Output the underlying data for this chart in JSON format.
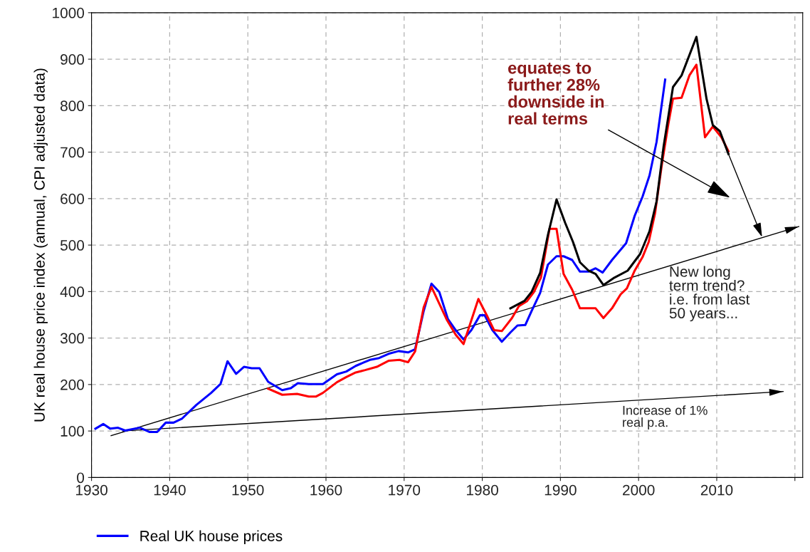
{
  "chart_data": {
    "type": "line",
    "ylabel": "UK real house price index (annual, CPI adjusted data)",
    "xlim": [
      1930,
      2021
    ],
    "ylim": [
      0,
      1000
    ],
    "xticks": [
      1930,
      1940,
      1950,
      1960,
      1970,
      1980,
      1990,
      2000,
      2010,
      {
        "value": 2020,
        "label": null
      }
    ],
    "yticks": [
      0,
      100,
      200,
      300,
      400,
      500,
      600,
      700,
      800,
      900,
      1000
    ],
    "grid": true,
    "legend": "bottom",
    "marker": "none",
    "line_style": "solid",
    "series": [
      {
        "name": "Real UK house prices",
        "color": "#0000ff",
        "x": [
          1930.5,
          1931.5,
          1932.4,
          1933.4,
          1934.3,
          1936.2,
          1937.4,
          1938.4,
          1939.5,
          1940.5,
          1941.6,
          1943.4,
          1945.3,
          1946.5,
          1947.4,
          1948.5,
          1949.5,
          1950.5,
          1951.5,
          1952.6,
          1954.4,
          1955.5,
          1956.4,
          1957.8,
          1959.6,
          1961.4,
          1962.6,
          1963.8,
          1965.6,
          1966.8,
          1968.0,
          1969.3,
          1970.5,
          1971.4,
          1972.5,
          1973.5,
          1974.5,
          1975.6,
          1976.6,
          1977.6,
          1978.6,
          1979.7,
          1980.3,
          1981.3,
          1982.5,
          1983.6,
          1984.5,
          1985.5,
          1986.3,
          1987.4,
          1988.4,
          1989.5,
          1990.4,
          1991.5,
          1992.5,
          1993.6,
          1994.5,
          1995.4,
          1996.6,
          1998.4,
          1999.5,
          2000.5,
          2001.4,
          2002.3,
          2003.4
        ],
        "values": [
          105,
          115,
          105,
          107,
          101,
          107,
          98,
          98,
          118,
          118,
          127,
          156,
          182,
          201,
          250,
          223,
          238,
          235,
          235,
          206,
          188,
          192,
          203,
          201,
          201,
          222,
          228,
          240,
          253,
          257,
          266,
          272,
          269,
          276,
          358,
          417,
          399,
          341,
          317,
          297,
          317,
          349,
          349,
          317,
          292,
          312,
          327,
          328,
          358,
          397,
          458,
          476,
          476,
          468,
          443,
          443,
          450,
          441,
          468,
          504,
          563,
          604,
          650,
          722,
          856
        ]
      },
      {
        "color": "#ff0000",
        "x": [
          1952.6,
          1954.4,
          1956.3,
          1957.8,
          1958.7,
          1959.6,
          1961.4,
          1962.6,
          1963.8,
          1965.0,
          1966.5,
          1968.0,
          1969.4,
          1970.5,
          1971.4,
          1972.5,
          1973.5,
          1974.5,
          1975.5,
          1976.6,
          1977.6,
          1979.5,
          1980.6,
          1981.5,
          1982.5,
          1983.8,
          1984.7,
          1985.7,
          1986.6,
          1987.5,
          1988.6,
          1989.5,
          1990.4,
          1991.5,
          1992.5,
          1994.5,
          1995.5,
          1996.6,
          1997.7,
          1998.5,
          1999.5,
          2000.5,
          2001.3,
          2002.1,
          2003.0,
          2003.8,
          2004.4,
          2005.5,
          2006.5,
          2007.4,
          2008.5,
          2009.5,
          2010.6,
          2011.5
        ],
        "values": [
          191,
          178,
          180,
          174,
          174,
          182,
          205,
          216,
          226,
          231,
          238,
          251,
          253,
          248,
          271,
          366,
          410,
          374,
          338,
          307,
          287,
          384,
          348,
          317,
          315,
          343,
          369,
          379,
          399,
          430,
          535,
          535,
          438,
          404,
          364,
          364,
          343,
          364,
          394,
          407,
          445,
          474,
          507,
          568,
          676,
          760,
          815,
          817,
          865,
          888,
          732,
          755,
          732,
          702
        ]
      },
      {
        "color": "#000000",
        "x": [
          1983.6,
          1985.4,
          1986.3,
          1987.4,
          1988.4,
          1989.5,
          1990.6,
          1991.6,
          1992.5,
          1993.6,
          1994.5,
          1995.5,
          1996.9,
          1998.6,
          2000.2,
          2001.4,
          2002.3,
          2003.2,
          2004.4,
          2005.5,
          2007.4,
          2008.7,
          2009.5,
          2010.4,
          2011.5
        ],
        "values": [
          364,
          380,
          399,
          440,
          522,
          598,
          548,
          507,
          463,
          445,
          438,
          414,
          430,
          445,
          481,
          530,
          594,
          712,
          840,
          865,
          948,
          814,
          758,
          745,
          696
        ]
      },
      {
        "color": "#000000",
        "x": [
          1932.5,
          2020.5
        ],
        "values": [
          90,
          540
        ]
      },
      {
        "color": "#000000",
        "x": [
          1934,
          2018.5
        ],
        "values": [
          100,
          185
        ]
      }
    ],
    "annotations": [
      "equates to\nfurther 28%\ndownside in\nreal terms",
      "New long\nterm trend?\ni.e. from last\n50 years...",
      "Increase of 1%\nreal p.a."
    ]
  }
}
